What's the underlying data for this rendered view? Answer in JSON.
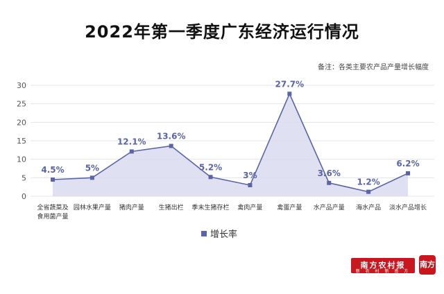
{
  "note": "备注：各类主要农产品产量增长幅度",
  "brand": {
    "name": "南方农村报",
    "sub": "新 农 村 新 南 方",
    "badge": "南方+"
  },
  "colors": {
    "line": "#5a64a6",
    "fill": "#d9dcf1",
    "grid": "#e4e4e4",
    "axis_text": "#555555",
    "label_text": "#5a64a6"
  },
  "chart_data": {
    "type": "area",
    "title": "2022年第一季度广东经济运行情况",
    "xlabel": "",
    "ylabel": "",
    "ylim": [
      0,
      30
    ],
    "yticks": [
      0,
      5,
      10,
      15,
      20,
      25,
      30
    ],
    "grid": true,
    "legend_position": "bottom",
    "categories": [
      [
        "全省蔬菜及",
        "食用菌产量"
      ],
      [
        "园林水果产量"
      ],
      [
        "猪肉产量"
      ],
      [
        "生猪出栏"
      ],
      [
        "季末生猪存栏"
      ],
      [
        "禽肉产量"
      ],
      [
        "禽蛋产量"
      ],
      [
        "水产品产量"
      ],
      [
        "海水产品"
      ],
      [
        "淡水产品增长"
      ]
    ],
    "series": [
      {
        "name": "增长率",
        "values": [
          4.5,
          5,
          12.1,
          13.6,
          5.2,
          3,
          27.7,
          3.6,
          1.2,
          6.2
        ],
        "labels": [
          "4.5%",
          "5%",
          "12.1%",
          "13.6%",
          "5.2%",
          "3%",
          "27.7%",
          "3.6%",
          "1.2%",
          "6.2%"
        ]
      }
    ]
  }
}
